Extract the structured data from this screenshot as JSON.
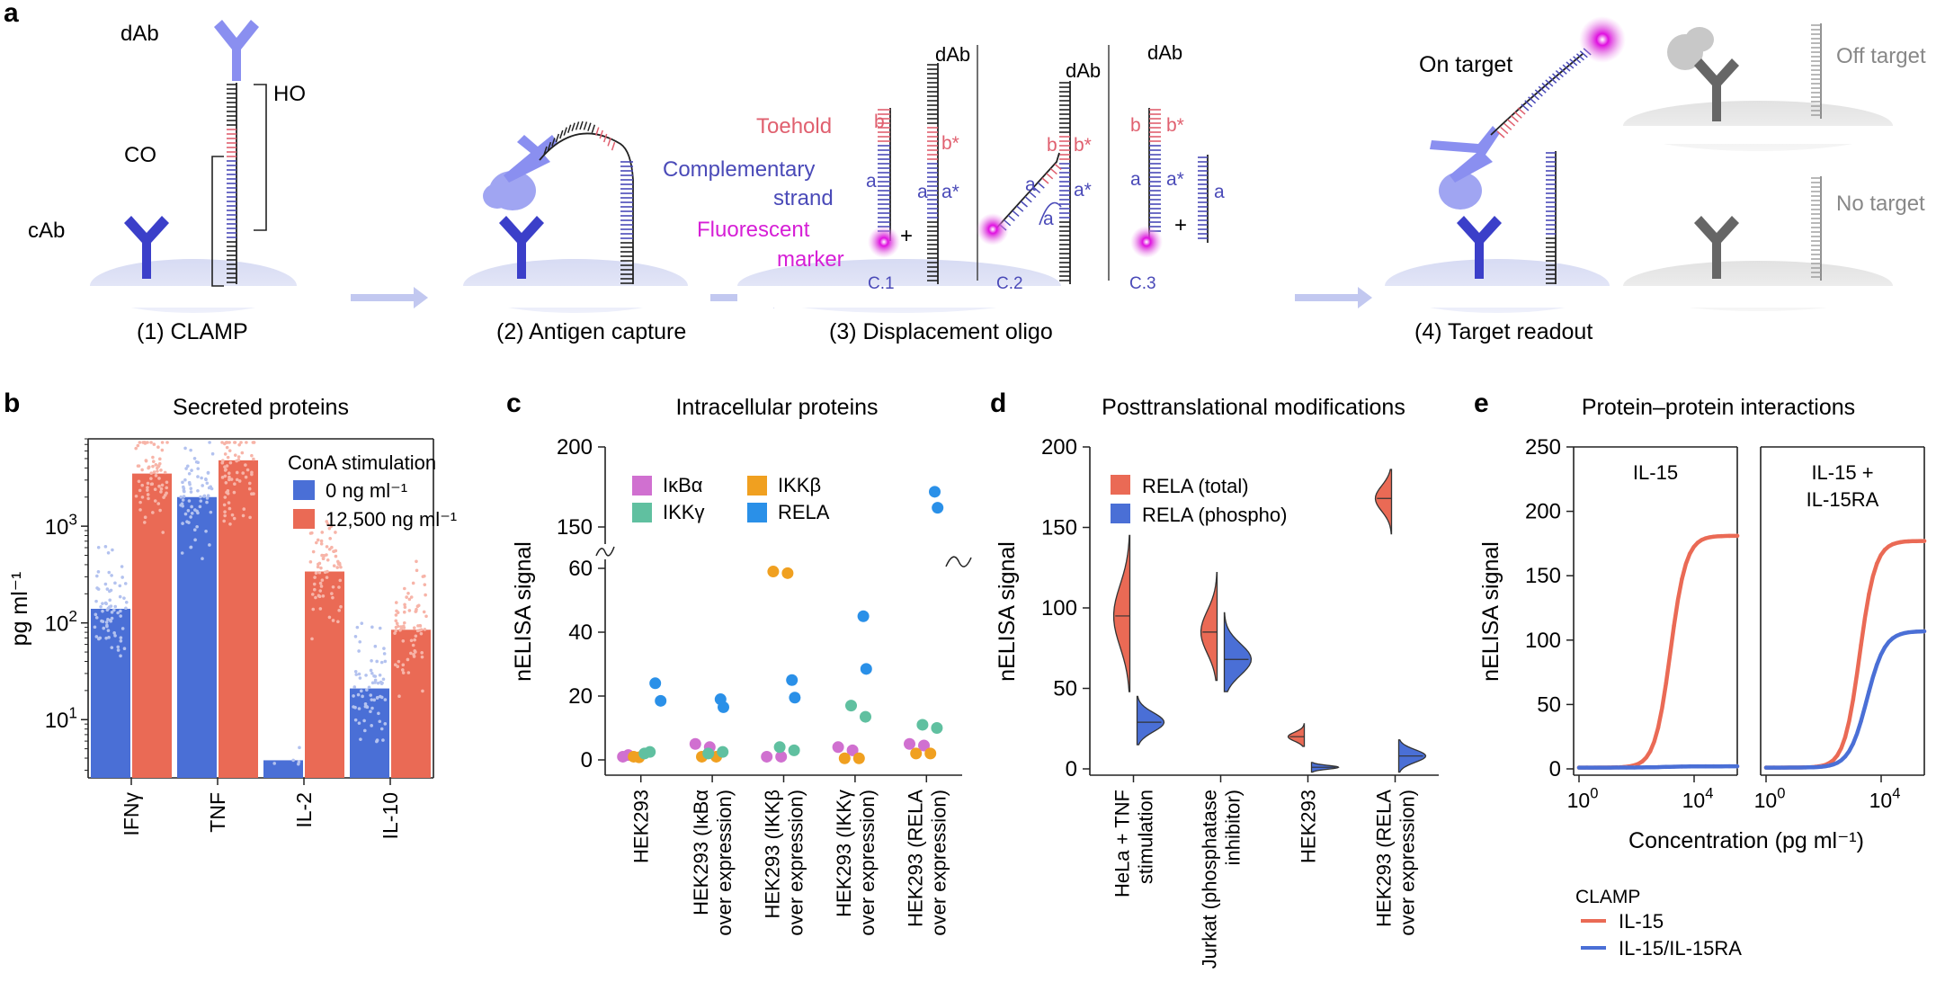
{
  "panel_a": {
    "letter": "a",
    "labels": {
      "dab": "dAb",
      "cab": "cAb",
      "ho": "HO",
      "co": "CO",
      "toehold": "Toehold",
      "complementary1": "Complementary",
      "complementary2": "strand",
      "fluorescent1": "Fluorescent",
      "fluorescent2": "marker",
      "b": "b",
      "bstar": "b*",
      "a": "a",
      "astar": "a*",
      "plus": "+",
      "c1": "C.1",
      "c2": "C.2",
      "c3": "C.3",
      "on_target": "On target",
      "off_target": "Off target",
      "no_target": "No target"
    },
    "steps": [
      "(1) CLAMP",
      "(2) Antigen capture",
      "(3) Displacement oligo",
      "(4) Target readout"
    ],
    "colors": {
      "antibody_dark": "#3b3fc9",
      "antibody_light": "#8a8ff0",
      "toehold": "#e0606f",
      "strand": "#4a4ab8",
      "marker": "#d61fd6",
      "grey": "#666666"
    }
  },
  "chart_data": [
    {
      "panel": "b",
      "type": "bar",
      "title": "Secreted proteins",
      "ylabel": "pg ml⁻¹",
      "yscale": "log",
      "ylim": [
        2.5,
        8000
      ],
      "yticks": [
        {
          "value": 10,
          "base": "10",
          "exp": "1"
        },
        {
          "value": 100,
          "base": "10",
          "exp": "2"
        },
        {
          "value": 1000,
          "base": "10",
          "exp": "3"
        }
      ],
      "categories": [
        "IFNγ",
        "TNF",
        "IL-2",
        "IL-10"
      ],
      "legend_title": "ConA stimulation",
      "series": [
        {
          "name": "0 ng ml⁻¹",
          "color": "#4a6fd6",
          "values": [
            140,
            2000,
            3.8,
            21
          ]
        },
        {
          "name": "12,500 ng ml⁻¹",
          "color": "#ea6a55",
          "values": [
            3500,
            4800,
            340,
            85
          ]
        }
      ]
    },
    {
      "panel": "c",
      "type": "scatter",
      "title": "Intracellular proteins",
      "ylabel": "nELISA signal",
      "yticks_lower": [
        0,
        20,
        40,
        60
      ],
      "yticks_upper": [
        150,
        200
      ],
      "categories": [
        "HEK293",
        "HEK293 (IκBα|over expression)",
        "HEK293 (IKKβ|over expression)",
        "HEK293 (IKKγ|over expression)",
        "HEK293 (RELA|over expression)"
      ],
      "series": [
        {
          "name": "IκBα",
          "color": "#d070d0",
          "values": [
            [
              1,
              1.5
            ],
            [
              5,
              4
            ],
            [
              1,
              1
            ],
            [
              4,
              3
            ],
            [
              5,
              4.5
            ]
          ]
        },
        {
          "name": "IKKβ",
          "color": "#f0a020",
          "values": [
            [
              1,
              0.8
            ],
            [
              1,
              1
            ],
            [
              59,
              58.5
            ],
            [
              0.5,
              0.5
            ],
            [
              2,
              2
            ]
          ]
        },
        {
          "name": "IKKγ",
          "color": "#60c0a0",
          "values": [
            [
              2,
              2.5
            ],
            [
              2,
              2.5
            ],
            [
              4,
              3
            ],
            [
              17,
              13.5
            ],
            [
              11,
              10
            ]
          ]
        },
        {
          "name": "RELA",
          "color": "#2a90e8",
          "values": [
            [
              24,
              18.5
            ],
            [
              19,
              16.5
            ],
            [
              25,
              19.5
            ],
            [
              45,
              28.5
            ],
            [
              172,
              162
            ]
          ]
        }
      ]
    },
    {
      "panel": "d",
      "type": "violin",
      "title": "Posttranslational modifications",
      "ylabel": "nELISA signal",
      "ylim": [
        0,
        200
      ],
      "yticks": [
        0,
        50,
        100,
        150,
        200
      ],
      "categories": [
        "HeLa + TNF|stimulation",
        "Jurkat (phosphatase|inhibitor)",
        "HEK293",
        "HEK293 (RELA|over expression)"
      ],
      "series": [
        {
          "name": "RELA (total)",
          "color": "#ea6a55",
          "distributions": [
            {
              "min": 48,
              "max": 145,
              "median": 95
            },
            {
              "min": 55,
              "max": 122,
              "median": 85
            },
            {
              "min": 14,
              "max": 28,
              "median": 20
            },
            {
              "min": 146,
              "max": 186,
              "median": 168
            }
          ]
        },
        {
          "name": "RELA (phospho)",
          "color": "#4a6fd6",
          "distributions": [
            {
              "min": 15,
              "max": 45,
              "median": 29
            },
            {
              "min": 48,
              "max": 97,
              "median": 68
            },
            {
              "min": -2,
              "max": 4,
              "median": 1
            },
            {
              "min": -2,
              "max": 18,
              "median": 8
            }
          ]
        }
      ]
    },
    {
      "panel": "e",
      "type": "line",
      "title": "Protein–protein interactions",
      "ylabel": "nELISA signal",
      "xlabel": "Concentration (pg ml⁻¹)",
      "xscale": "log",
      "ylim": [
        0,
        250
      ],
      "yticks": [
        0,
        50,
        100,
        150,
        200,
        250
      ],
      "xticks": [
        {
          "value": 1,
          "base": "10",
          "exp": "0"
        },
        {
          "value": 10000,
          "base": "10",
          "exp": "4"
        }
      ],
      "legend_title": "CLAMP",
      "subpanels": [
        {
          "title": [
            "IL-15"
          ],
          "series": [
            {
              "name": "IL-15",
              "color": "#ea6a55",
              "top": 180,
              "ec50": 1500,
              "hill": 1.6
            },
            {
              "name": "IL-15/IL-15RA",
              "color": "#4a6fd6",
              "top": 1,
              "ec50": 1000,
              "hill": 1
            }
          ]
        },
        {
          "title": [
            "IL-15 +",
            "IL-15RA"
          ],
          "series": [
            {
              "name": "IL-15",
              "color": "#ea6a55",
              "top": 176,
              "ec50": 1800,
              "hill": 1.6
            },
            {
              "name": "IL-15/IL-15RA",
              "color": "#4a6fd6",
              "top": 106,
              "ec50": 3200,
              "hill": 1.4
            }
          ]
        }
      ]
    }
  ]
}
